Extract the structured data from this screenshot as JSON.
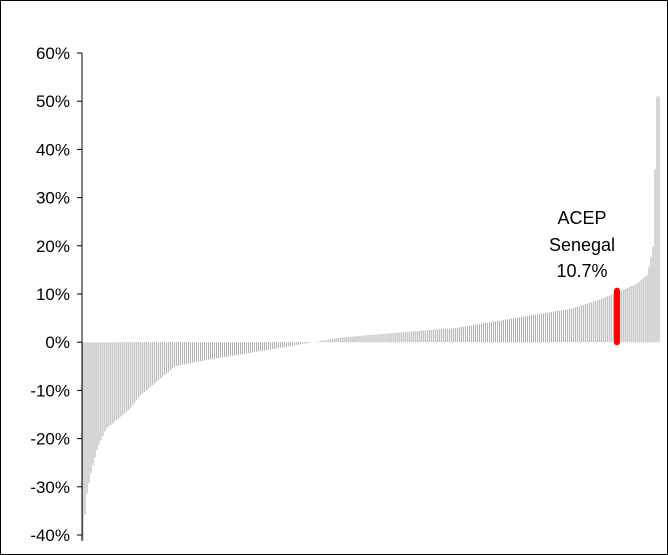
{
  "chart_data": {
    "type": "bar",
    "title": "",
    "xlabel": "",
    "ylabel": "",
    "ylim": [
      -0.4,
      0.6
    ],
    "y_ticks": [
      "60%",
      "50%",
      "40%",
      "30%",
      "20%",
      "10%",
      "0%",
      "-10%",
      "-20%",
      "-30%",
      "-40%"
    ],
    "y_tick_values": [
      0.6,
      0.5,
      0.4,
      0.3,
      0.2,
      0.1,
      0.0,
      -0.1,
      -0.2,
      -0.3,
      -0.4
    ],
    "grid": false,
    "legend": "none",
    "sorted": "ascending",
    "bar_count": 290,
    "value_profile": [
      [
        0.0,
        -0.41
      ],
      [
        0.006,
        -0.32
      ],
      [
        0.014,
        -0.27
      ],
      [
        0.025,
        -0.22
      ],
      [
        0.04,
        -0.18
      ],
      [
        0.06,
        -0.16
      ],
      [
        0.08,
        -0.14
      ],
      [
        0.1,
        -0.11
      ],
      [
        0.13,
        -0.08
      ],
      [
        0.16,
        -0.05
      ],
      [
        0.2,
        -0.04
      ],
      [
        0.25,
        -0.03
      ],
      [
        0.3,
        -0.02
      ],
      [
        0.35,
        -0.01
      ],
      [
        0.4,
        0.0
      ],
      [
        0.45,
        0.01
      ],
      [
        0.5,
        0.015
      ],
      [
        0.55,
        0.02
      ],
      [
        0.6,
        0.025
      ],
      [
        0.65,
        0.03
      ],
      [
        0.7,
        0.04
      ],
      [
        0.75,
        0.05
      ],
      [
        0.8,
        0.06
      ],
      [
        0.85,
        0.07
      ],
      [
        0.9,
        0.09
      ],
      [
        0.93,
        0.105
      ],
      [
        0.96,
        0.12
      ],
      [
        0.98,
        0.14
      ],
      [
        0.99,
        0.2
      ],
      [
        0.996,
        0.51
      ],
      [
        1.0,
        0.51
      ]
    ],
    "highlight": {
      "name": "ACEP",
      "country": "Senegal",
      "value_label": "10.7%",
      "value": 0.107,
      "rank_fraction": 0.927,
      "color": "#ff0000"
    },
    "bar_color": "#999999"
  }
}
